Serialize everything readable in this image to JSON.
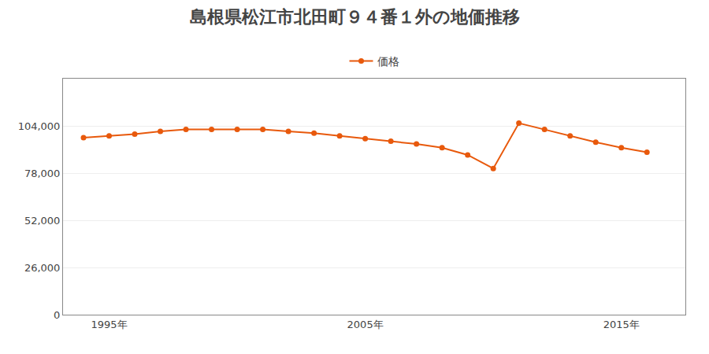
{
  "chart_data": {
    "type": "line",
    "title": "島根県松江市北田町９４番１外の地価推移",
    "x": [
      1994,
      1995,
      1996,
      1997,
      1998,
      1999,
      2000,
      2001,
      2002,
      2003,
      2004,
      2005,
      2006,
      2007,
      2008,
      2009,
      2010,
      2011,
      2012,
      2013,
      2014,
      2015,
      2016
    ],
    "series": [
      {
        "name": "価格",
        "color": "#E8590C",
        "marker": "circle",
        "line_style": "solid",
        "values": [
          97500,
          98500,
          99500,
          101000,
          102000,
          102000,
          102000,
          102000,
          101000,
          100000,
          98500,
          97000,
          95500,
          94000,
          92000,
          88000,
          80500,
          105500,
          102000,
          98500,
          95000,
          92000,
          89500
        ]
      }
    ],
    "xlim": [
      1993.2,
      2017.5
    ],
    "xticks": [
      {
        "value": 1995,
        "label": "1995年"
      },
      {
        "value": 2005,
        "label": "2005年"
      },
      {
        "value": 2015,
        "label": "2015年"
      }
    ],
    "ylim": [
      0,
      130000
    ],
    "yticks": [
      0,
      {
        "value": 26000,
        "label": "26,000"
      },
      {
        "value": 52000,
        "label": "52,000"
      },
      {
        "value": 78000,
        "label": "78,000"
      },
      {
        "value": 104000,
        "label": "104,000"
      }
    ],
    "grid": true,
    "legend": "top"
  }
}
